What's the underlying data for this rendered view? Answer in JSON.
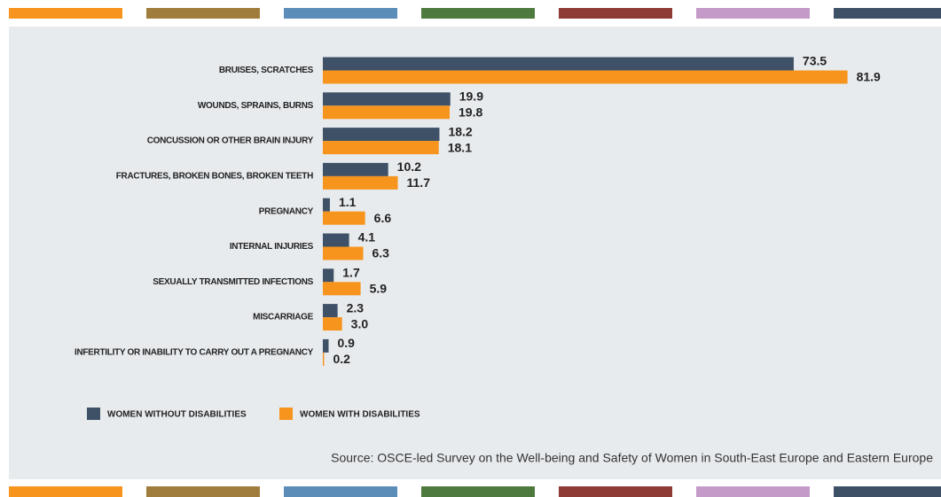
{
  "chart_data": {
    "type": "hbar",
    "categories": [
      "BRUISES, SCRATCHES",
      "WOUNDS, SPRAINS, BURNS",
      "CONCUSSION OR OTHER BRAIN INJURY",
      "FRACTURES, BROKEN BONES, BROKEN TEETH",
      "PREGNANCY",
      "INTERNAL INJURIES",
      "SEXUALLY TRANSMITTED INFECTIONS",
      "MISCARRIAGE",
      "INFERTILITY OR INABILITY TO CARRY OUT A PREGNANCY"
    ],
    "series": [
      {
        "name": "WOMEN WITHOUT DISABILITIES",
        "color": "#3e5166",
        "values": [
          73.5,
          19.9,
          18.2,
          10.2,
          1.1,
          4.1,
          1.7,
          2.3,
          0.9
        ],
        "value_labels": [
          "73.5",
          "19.9",
          "18.2",
          "10.2",
          "1.1",
          "4.1",
          "1.7",
          "2.3",
          "0.9"
        ]
      },
      {
        "name": "WOMEN WITH DISABILITIES",
        "color": "#f7941d",
        "values": [
          81.9,
          19.8,
          18.1,
          11.7,
          6.6,
          6.3,
          5.9,
          3.0,
          0.2
        ],
        "value_labels": [
          "81.9",
          "19.8",
          "18.1",
          "11.7",
          "6.6",
          "6.3",
          "5.9",
          "3.0",
          "0.2"
        ]
      }
    ],
    "xlim": [
      0,
      85
    ],
    "source": "Source: OSCE-led Survey on the Well-being and Safety of Women in South-East Europe and Eastern Europe"
  }
}
